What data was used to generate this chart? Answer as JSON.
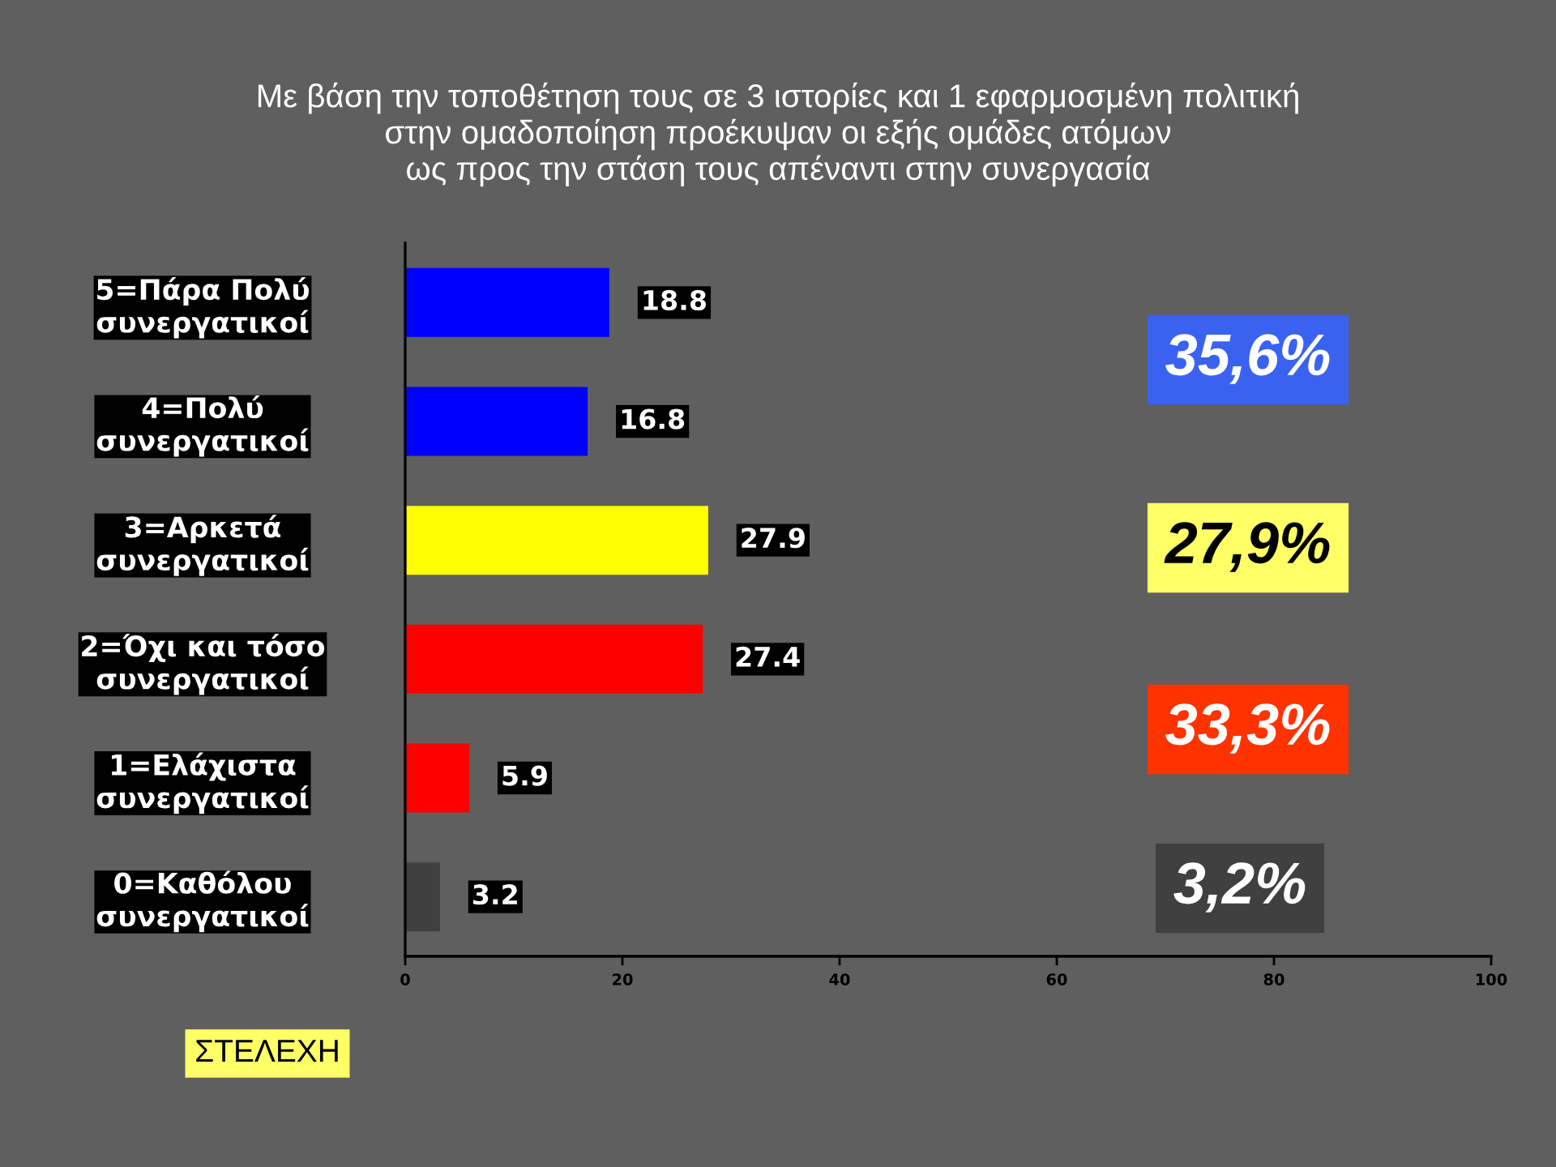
{
  "chart_data": {
    "type": "bar",
    "orientation": "horizontal",
    "title": "Με βάση την τοποθέτηση τους σε 3 ιστορίες και 1 εφαρμοσμένη πολιτική\nστην ομαδοποίηση προέκυψαν οι εξής ομάδες ατόμων\nως προς την στάση τους απέναντι στην συνεργασία",
    "categories": [
      "5=Πάρα Πολύ\nσυνεργατικοί",
      "4=Πολύ\nσυνεργατικοί",
      "3=Αρκετά\nσυνεργατικοί",
      "2=Όχι και τόσο\nσυνεργατικοί",
      "1=Ελάχιστα\nσυνεργατικοί",
      "0=Καθόλου\nσυνεργατικοί"
    ],
    "values": [
      18.8,
      16.8,
      27.9,
      27.4,
      5.9,
      3.2
    ],
    "colors": [
      "#0000ff",
      "#0000ff",
      "#ffff00",
      "#ff0000",
      "#ff0000",
      "#404040"
    ],
    "xlim": [
      0,
      100
    ],
    "xticks": [
      0,
      20,
      40,
      60,
      80,
      100
    ],
    "data_labels": true,
    "grid": false,
    "legend": false,
    "annotations": [
      "35,6%",
      "27,9%",
      "33,3%",
      "3,2%",
      "ΣΤΕΛΕΧΗ"
    ]
  }
}
